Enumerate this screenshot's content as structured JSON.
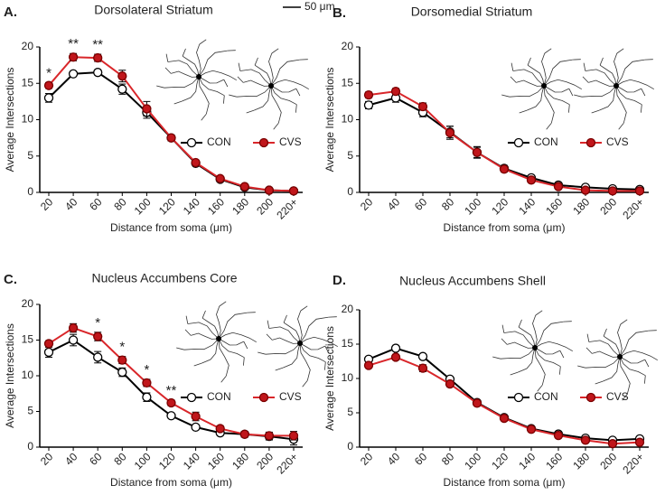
{
  "chart_data": [
    {
      "type": "line",
      "panel": "A.",
      "title": "Dorsolateral Striatum",
      "x_label": "Distance from soma (μm)",
      "y_label": "Average Intersections",
      "scale_bar": "50 μm",
      "categories": [
        "20",
        "40",
        "60",
        "80",
        "100",
        "120",
        "140",
        "160",
        "180",
        "200",
        "220+"
      ],
      "ylim": [
        0,
        20
      ],
      "yticks": [
        0,
        5,
        10,
        15,
        20
      ],
      "series": [
        {
          "name": "CON",
          "color": "#000000",
          "marker_fill": "#ffffff",
          "values": [
            13,
            16.3,
            16.5,
            14.2,
            11,
            7.5,
            4,
            1.8,
            0.7,
            0.3,
            0.2
          ],
          "errors": [
            0.6,
            0.3,
            0.3,
            0.7,
            0.8,
            0.4,
            0.3,
            0.2,
            0.1,
            0.1,
            0.1
          ]
        },
        {
          "name": "CVS",
          "color": "#d9262a",
          "marker_fill": "#c0161b",
          "values": [
            14.7,
            18.6,
            18.5,
            16,
            11.5,
            7.5,
            4.1,
            1.9,
            0.8,
            0.3,
            0.2
          ],
          "errors": [
            0.4,
            0.5,
            0.5,
            0.8,
            1,
            0.4,
            0.3,
            0.2,
            0.1,
            0.1,
            0.1
          ]
        }
      ],
      "annotations": [
        {
          "category": "20",
          "text": "*"
        },
        {
          "category": "40",
          "text": "**"
        },
        {
          "category": "60",
          "text": "**"
        }
      ]
    },
    {
      "type": "line",
      "panel": "B.",
      "title": "Dorsomedial Striatum",
      "x_label": "Distance from soma (μm)",
      "y_label": "Average Intersections",
      "categories": [
        "20",
        "40",
        "60",
        "80",
        "100",
        "120",
        "140",
        "160",
        "180",
        "200",
        "220+"
      ],
      "ylim": [
        0,
        20
      ],
      "yticks": [
        0,
        5,
        10,
        15,
        20
      ],
      "series": [
        {
          "name": "CON",
          "color": "#000000",
          "marker_fill": "#ffffff",
          "values": [
            12,
            13,
            11,
            8.3,
            5.5,
            3.3,
            2,
            1,
            0.7,
            0.5,
            0.4
          ],
          "errors": [
            0.5,
            0.6,
            0.6,
            0.8,
            0.7,
            0.4,
            0.3,
            0.2,
            0.2,
            0.3,
            0.2
          ]
        },
        {
          "name": "CVS",
          "color": "#d9262a",
          "marker_fill": "#c0161b",
          "values": [
            13.4,
            13.9,
            11.8,
            8.2,
            5.5,
            3.2,
            1.7,
            0.8,
            0.3,
            0.2,
            0.2
          ],
          "errors": [
            0.4,
            0.4,
            0.5,
            0.9,
            0.8,
            0.4,
            0.3,
            0.2,
            0.1,
            0.1,
            0.1
          ]
        }
      ],
      "annotations": []
    },
    {
      "type": "line",
      "panel": "C.",
      "title": "Nucleus Accumbens Core",
      "x_label": "Distance from soma (μm)",
      "y_label": "Average Intersections",
      "categories": [
        "20",
        "40",
        "60",
        "80",
        "100",
        "120",
        "140",
        "160",
        "180",
        "200",
        "220+"
      ],
      "ylim": [
        0,
        20
      ],
      "yticks": [
        0,
        5,
        10,
        15,
        20
      ],
      "series": [
        {
          "name": "CON",
          "color": "#000000",
          "marker_fill": "#ffffff",
          "values": [
            13.3,
            15,
            12.6,
            10.5,
            7,
            4.4,
            2.8,
            2,
            1.8,
            1.5,
            1.1
          ],
          "errors": [
            0.7,
            0.8,
            0.8,
            0.6,
            0.6,
            0.3,
            0.3,
            0.3,
            0.4,
            0.5,
            0.8
          ]
        },
        {
          "name": "CVS",
          "color": "#d9262a",
          "marker_fill": "#c0161b",
          "values": [
            14.5,
            16.7,
            15.5,
            12.2,
            9,
            6.2,
            4.3,
            2.6,
            1.8,
            1.6,
            1.6
          ],
          "errors": [
            0.4,
            0.6,
            0.6,
            0.5,
            0.5,
            0.4,
            0.6,
            0.4,
            0.4,
            0.5,
            0.6
          ]
        }
      ],
      "annotations": [
        {
          "category": "60",
          "text": "*"
        },
        {
          "category": "80",
          "text": "*"
        },
        {
          "category": "100",
          "text": "*"
        },
        {
          "category": "120",
          "text": "**"
        }
      ]
    },
    {
      "type": "line",
      "panel": "D.",
      "title": "Nucleus Accumbens Shell",
      "x_label": "Distance from soma (μm)",
      "y_label": "Average Intersections",
      "categories": [
        "20",
        "40",
        "60",
        "80",
        "100",
        "120",
        "140",
        "160",
        "180",
        "200",
        "220+"
      ],
      "ylim": [
        0,
        20
      ],
      "yticks": [
        0,
        5,
        10,
        15,
        20
      ],
      "series": [
        {
          "name": "CON",
          "color": "#000000",
          "marker_fill": "#ffffff",
          "values": [
            12.8,
            14.4,
            13.2,
            9.9,
            6.5,
            4.3,
            2.7,
            1.9,
            1.3,
            1,
            1.2
          ],
          "errors": [
            0.3,
            0.3,
            0.3,
            0.3,
            0.3,
            0.2,
            0.2,
            0.2,
            0.2,
            0.2,
            0.3
          ]
        },
        {
          "name": "CVS",
          "color": "#d9262a",
          "marker_fill": "#c0161b",
          "values": [
            11.9,
            13.1,
            11.5,
            9.2,
            6.4,
            4.2,
            2.6,
            1.7,
            1,
            0.5,
            0.7
          ],
          "errors": [
            0.3,
            0.4,
            0.5,
            0.4,
            0.3,
            0.2,
            0.2,
            0.2,
            0.2,
            0.2,
            0.2
          ]
        }
      ],
      "annotations": []
    }
  ]
}
